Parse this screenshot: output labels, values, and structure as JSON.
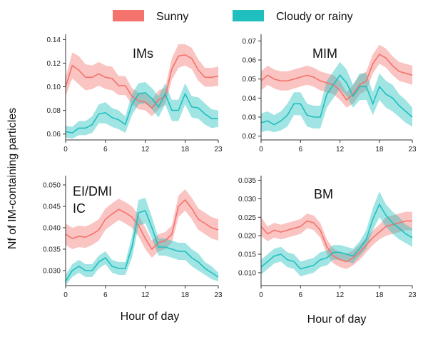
{
  "colors": {
    "sunny": "#f4736d",
    "cloudy": "#1fbfbf"
  },
  "legend": {
    "sunny": "Sunny",
    "cloudy": "Cloudy or rainy"
  },
  "ylabel": "Nf of IM-containing particles",
  "chart_data": [
    {
      "type": "line",
      "title": "IMs",
      "xlabel": "",
      "ylabel": "",
      "xlim": [
        0,
        23
      ],
      "ylim": [
        0.055,
        0.142
      ],
      "xticks": [
        0,
        6,
        12,
        18,
        23
      ],
      "yticks": [
        "0.06",
        "0.08",
        "0.10",
        "0.12",
        "0.14"
      ],
      "x": [
        0,
        1,
        2,
        3,
        4,
        5,
        6,
        7,
        8,
        9,
        10,
        11,
        12,
        13,
        14,
        15,
        16,
        17,
        18,
        19,
        20,
        21,
        22,
        23
      ],
      "series": [
        {
          "name": "Sunny",
          "values": [
            0.1,
            0.118,
            0.114,
            0.108,
            0.108,
            0.111,
            0.108,
            0.107,
            0.101,
            0.101,
            0.092,
            0.088,
            0.087,
            0.082,
            0.089,
            0.092,
            0.115,
            0.126,
            0.127,
            0.124,
            0.114,
            0.108,
            0.108,
            0.109
          ],
          "lower": [
            0.092,
            0.107,
            0.102,
            0.097,
            0.098,
            0.101,
            0.098,
            0.097,
            0.093,
            0.093,
            0.085,
            0.081,
            0.08,
            0.075,
            0.081,
            0.085,
            0.106,
            0.116,
            0.118,
            0.115,
            0.105,
            0.1,
            0.1,
            0.101
          ],
          "upper": [
            0.108,
            0.129,
            0.126,
            0.119,
            0.118,
            0.121,
            0.118,
            0.117,
            0.109,
            0.109,
            0.099,
            0.095,
            0.094,
            0.089,
            0.097,
            0.099,
            0.124,
            0.136,
            0.136,
            0.133,
            0.123,
            0.116,
            0.116,
            0.117
          ]
        },
        {
          "name": "Cloudy or rainy",
          "values": [
            0.062,
            0.061,
            0.065,
            0.065,
            0.068,
            0.077,
            0.078,
            0.074,
            0.072,
            0.068,
            0.085,
            0.094,
            0.095,
            0.09,
            0.083,
            0.094,
            0.08,
            0.08,
            0.094,
            0.083,
            0.082,
            0.077,
            0.073,
            0.073
          ],
          "lower": [
            0.057,
            0.056,
            0.059,
            0.059,
            0.061,
            0.069,
            0.069,
            0.066,
            0.064,
            0.061,
            0.076,
            0.085,
            0.086,
            0.081,
            0.074,
            0.085,
            0.071,
            0.071,
            0.085,
            0.074,
            0.073,
            0.068,
            0.065,
            0.066
          ],
          "upper": [
            0.067,
            0.066,
            0.071,
            0.071,
            0.075,
            0.085,
            0.087,
            0.082,
            0.08,
            0.075,
            0.094,
            0.103,
            0.104,
            0.099,
            0.092,
            0.103,
            0.089,
            0.089,
            0.103,
            0.092,
            0.091,
            0.086,
            0.081,
            0.08
          ]
        }
      ]
    },
    {
      "type": "line",
      "title": "MIM",
      "xlabel": "",
      "ylabel": "",
      "xlim": [
        0,
        23
      ],
      "ylim": [
        0.018,
        0.072
      ],
      "xticks": [
        0,
        6,
        12,
        18,
        23
      ],
      "yticks": [
        "0.02",
        "0.03",
        "0.04",
        "0.05",
        "0.06",
        "0.07"
      ],
      "x": [
        0,
        1,
        2,
        3,
        4,
        5,
        6,
        7,
        8,
        9,
        10,
        11,
        12,
        13,
        14,
        15,
        16,
        17,
        18,
        19,
        20,
        21,
        22,
        23
      ],
      "series": [
        {
          "name": "Sunny",
          "values": [
            0.049,
            0.052,
            0.05,
            0.049,
            0.049,
            0.05,
            0.051,
            0.052,
            0.051,
            0.049,
            0.048,
            0.047,
            0.044,
            0.039,
            0.042,
            0.047,
            0.049,
            0.058,
            0.063,
            0.061,
            0.057,
            0.054,
            0.053,
            0.052
          ],
          "lower": [
            0.044,
            0.047,
            0.045,
            0.044,
            0.044,
            0.045,
            0.046,
            0.047,
            0.046,
            0.044,
            0.043,
            0.042,
            0.039,
            0.035,
            0.037,
            0.042,
            0.044,
            0.053,
            0.058,
            0.056,
            0.052,
            0.049,
            0.048,
            0.047
          ],
          "upper": [
            0.054,
            0.057,
            0.055,
            0.054,
            0.054,
            0.055,
            0.056,
            0.057,
            0.056,
            0.054,
            0.053,
            0.052,
            0.049,
            0.043,
            0.047,
            0.052,
            0.054,
            0.063,
            0.068,
            0.066,
            0.062,
            0.059,
            0.058,
            0.057
          ]
        },
        {
          "name": "Cloudy or rainy",
          "values": [
            0.027,
            0.028,
            0.026,
            0.028,
            0.031,
            0.037,
            0.037,
            0.031,
            0.03,
            0.03,
            0.042,
            0.047,
            0.052,
            0.048,
            0.041,
            0.046,
            0.046,
            0.037,
            0.046,
            0.042,
            0.04,
            0.036,
            0.033,
            0.03
          ],
          "lower": [
            0.022,
            0.023,
            0.022,
            0.023,
            0.025,
            0.031,
            0.031,
            0.025,
            0.024,
            0.024,
            0.035,
            0.04,
            0.045,
            0.041,
            0.035,
            0.039,
            0.039,
            0.031,
            0.039,
            0.035,
            0.033,
            0.03,
            0.027,
            0.025
          ],
          "upper": [
            0.032,
            0.033,
            0.031,
            0.033,
            0.037,
            0.043,
            0.043,
            0.037,
            0.036,
            0.036,
            0.049,
            0.054,
            0.059,
            0.055,
            0.047,
            0.053,
            0.053,
            0.043,
            0.053,
            0.049,
            0.047,
            0.042,
            0.039,
            0.035
          ]
        }
      ]
    },
    {
      "type": "line",
      "title": "EI/DMI\nIC",
      "xlabel": "Hour of day",
      "ylabel": "",
      "xlim": [
        0,
        23
      ],
      "ylim": [
        0.0265,
        0.0515
      ],
      "xticks": [
        0,
        6,
        12,
        18,
        23
      ],
      "yticks": [
        "0.030",
        "0.035",
        "0.040",
        "0.045",
        "0.050"
      ],
      "x": [
        0,
        1,
        2,
        3,
        4,
        5,
        6,
        7,
        8,
        9,
        10,
        11,
        12,
        13,
        14,
        15,
        16,
        17,
        18,
        19,
        20,
        21,
        22,
        23
      ],
      "series": [
        {
          "name": "Sunny",
          "values": [
            0.0385,
            0.0375,
            0.038,
            0.0378,
            0.0385,
            0.0395,
            0.042,
            0.0432,
            0.0443,
            0.0435,
            0.0425,
            0.0405,
            0.0375,
            0.035,
            0.0365,
            0.037,
            0.0385,
            0.045,
            0.0465,
            0.0445,
            0.042,
            0.041,
            0.04,
            0.0395
          ],
          "lower": [
            0.036,
            0.035,
            0.0355,
            0.0353,
            0.036,
            0.037,
            0.0395,
            0.0407,
            0.0418,
            0.041,
            0.04,
            0.038,
            0.035,
            0.033,
            0.0345,
            0.035,
            0.0365,
            0.0425,
            0.044,
            0.042,
            0.0395,
            0.0385,
            0.0375,
            0.037
          ],
          "upper": [
            0.041,
            0.04,
            0.0405,
            0.0403,
            0.041,
            0.042,
            0.0445,
            0.0457,
            0.0468,
            0.046,
            0.045,
            0.043,
            0.04,
            0.037,
            0.0385,
            0.039,
            0.0405,
            0.0475,
            0.049,
            0.047,
            0.0445,
            0.0435,
            0.0425,
            0.042
          ]
        },
        {
          "name": "Cloudy or rainy",
          "values": [
            0.0275,
            0.03,
            0.031,
            0.03,
            0.03,
            0.032,
            0.033,
            0.031,
            0.0305,
            0.0305,
            0.0355,
            0.0435,
            0.044,
            0.04,
            0.0355,
            0.0355,
            0.035,
            0.0345,
            0.0345,
            0.033,
            0.032,
            0.0305,
            0.0295,
            0.0285
          ],
          "lower": [
            0.0265,
            0.0285,
            0.0295,
            0.0285,
            0.0285,
            0.0305,
            0.0315,
            0.0295,
            0.029,
            0.029,
            0.033,
            0.0405,
            0.041,
            0.0375,
            0.0335,
            0.0335,
            0.033,
            0.0325,
            0.0325,
            0.031,
            0.03,
            0.029,
            0.028,
            0.0275
          ],
          "upper": [
            0.029,
            0.0315,
            0.0325,
            0.0315,
            0.0315,
            0.0335,
            0.0345,
            0.0325,
            0.032,
            0.032,
            0.038,
            0.0465,
            0.047,
            0.0425,
            0.0375,
            0.0375,
            0.037,
            0.0365,
            0.0365,
            0.035,
            0.034,
            0.032,
            0.031,
            0.0295
          ]
        }
      ]
    },
    {
      "type": "line",
      "title": "BM",
      "xlabel": "Hour of day",
      "ylabel": "",
      "xlim": [
        0,
        23
      ],
      "ylim": [
        0.0065,
        0.0355
      ],
      "xticks": [
        0,
        6,
        12,
        18,
        23
      ],
      "yticks": [
        "0.010",
        "0.015",
        "0.020",
        "0.025",
        "0.030",
        "0.035"
      ],
      "x": [
        0,
        1,
        2,
        3,
        4,
        5,
        6,
        7,
        8,
        9,
        10,
        11,
        12,
        13,
        14,
        15,
        16,
        17,
        18,
        19,
        20,
        21,
        22,
        23
      ],
      "series": [
        {
          "name": "Sunny",
          "values": [
            0.0225,
            0.0205,
            0.0215,
            0.021,
            0.0215,
            0.022,
            0.0225,
            0.024,
            0.0235,
            0.0215,
            0.017,
            0.0145,
            0.0135,
            0.013,
            0.014,
            0.0155,
            0.0175,
            0.0195,
            0.021,
            0.0225,
            0.023,
            0.0235,
            0.024,
            0.024
          ],
          "lower": [
            0.02,
            0.0185,
            0.0195,
            0.019,
            0.0195,
            0.02,
            0.0205,
            0.022,
            0.0215,
            0.0195,
            0.015,
            0.0125,
            0.0115,
            0.011,
            0.012,
            0.0135,
            0.0155,
            0.0175,
            0.019,
            0.02,
            0.0205,
            0.021,
            0.0215,
            0.0215
          ],
          "upper": [
            0.025,
            0.0225,
            0.0235,
            0.023,
            0.0235,
            0.024,
            0.0245,
            0.026,
            0.0255,
            0.0235,
            0.019,
            0.0165,
            0.0155,
            0.015,
            0.016,
            0.0175,
            0.0195,
            0.0215,
            0.023,
            0.025,
            0.0255,
            0.026,
            0.0265,
            0.0265
          ]
        },
        {
          "name": "Cloudy or rainy",
          "values": [
            0.0115,
            0.013,
            0.0145,
            0.015,
            0.0135,
            0.013,
            0.011,
            0.0115,
            0.012,
            0.0135,
            0.014,
            0.0155,
            0.0155,
            0.015,
            0.0145,
            0.0165,
            0.019,
            0.0245,
            0.0285,
            0.0255,
            0.0235,
            0.022,
            0.0205,
            0.0195
          ],
          "lower": [
            0.0095,
            0.011,
            0.0125,
            0.013,
            0.0115,
            0.011,
            0.009,
            0.0095,
            0.01,
            0.0115,
            0.012,
            0.0135,
            0.0135,
            0.013,
            0.0125,
            0.0145,
            0.0165,
            0.0215,
            0.025,
            0.0225,
            0.0205,
            0.019,
            0.018,
            0.017
          ],
          "upper": [
            0.0135,
            0.015,
            0.0165,
            0.017,
            0.0155,
            0.015,
            0.013,
            0.0135,
            0.014,
            0.0155,
            0.016,
            0.0175,
            0.0175,
            0.017,
            0.0165,
            0.0185,
            0.0215,
            0.0275,
            0.032,
            0.0285,
            0.0265,
            0.025,
            0.023,
            0.022
          ]
        }
      ]
    }
  ]
}
